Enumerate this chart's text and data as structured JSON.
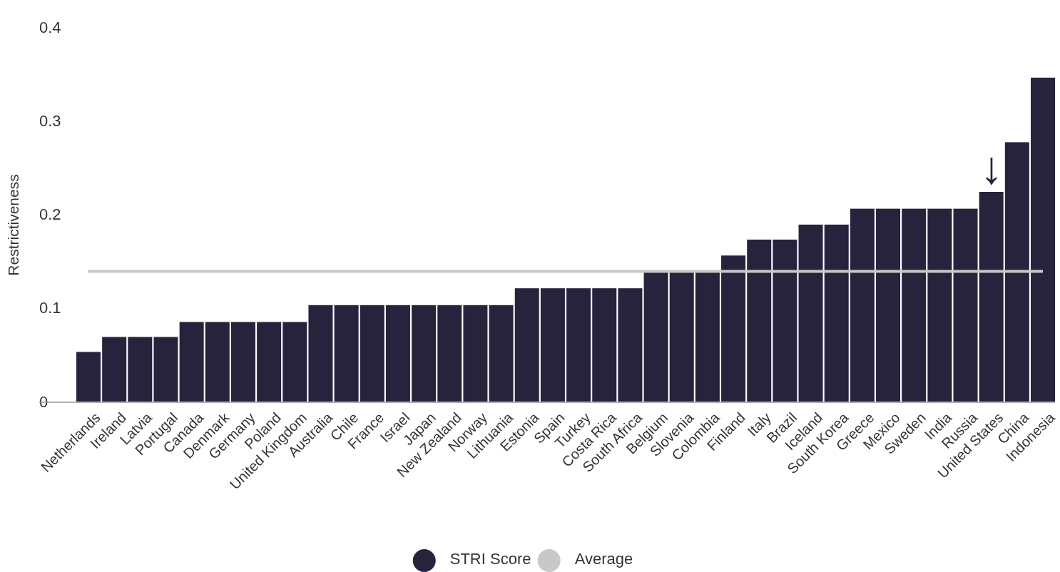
{
  "chart_data": {
    "type": "bar",
    "ylabel": "Restrictiveness",
    "categories": [
      "Netherlands",
      "Ireland",
      "Latvia",
      "Portugal",
      "Canada",
      "Denmark",
      "Germany",
      "Poland",
      "United Kingdom",
      "Australia",
      "Chile",
      "France",
      "Israel",
      "Japan",
      "New Zealand",
      "Norway",
      "Lithuania",
      "Estonia",
      "Spain",
      "Turkey",
      "Costa Rica",
      "South Africa",
      "Belgium",
      "Slovenia",
      "Colombia",
      "Finland",
      "Italy",
      "Brazil",
      "Iceland",
      "South Korea",
      "Greece",
      "Mexico",
      "Sweden",
      "India",
      "Russia",
      "United States",
      "China",
      "Indonesia"
    ],
    "series": [
      {
        "name": "STRI Score",
        "color": "#27233d",
        "values": [
          0.053,
          0.069,
          0.069,
          0.069,
          0.085,
          0.085,
          0.085,
          0.085,
          0.085,
          0.103,
          0.103,
          0.103,
          0.103,
          0.103,
          0.103,
          0.103,
          0.103,
          0.121,
          0.121,
          0.121,
          0.121,
          0.121,
          0.139,
          0.139,
          0.139,
          0.156,
          0.173,
          0.173,
          0.189,
          0.189,
          0.206,
          0.206,
          0.206,
          0.206,
          0.206,
          0.224,
          0.277,
          0.346
        ]
      }
    ],
    "ylim": [
      0,
      0.4
    ],
    "yticks": [
      0,
      0.1,
      0.2,
      0.3,
      0.4
    ],
    "ref_lines": [
      {
        "axis": "y",
        "value": 0.139,
        "label": "Average",
        "color": "#c8c8c8"
      }
    ],
    "annotations": [
      {
        "text": "↓",
        "x": "United States",
        "y": 0.224
      }
    ],
    "legend": "bottom",
    "grid": false
  }
}
